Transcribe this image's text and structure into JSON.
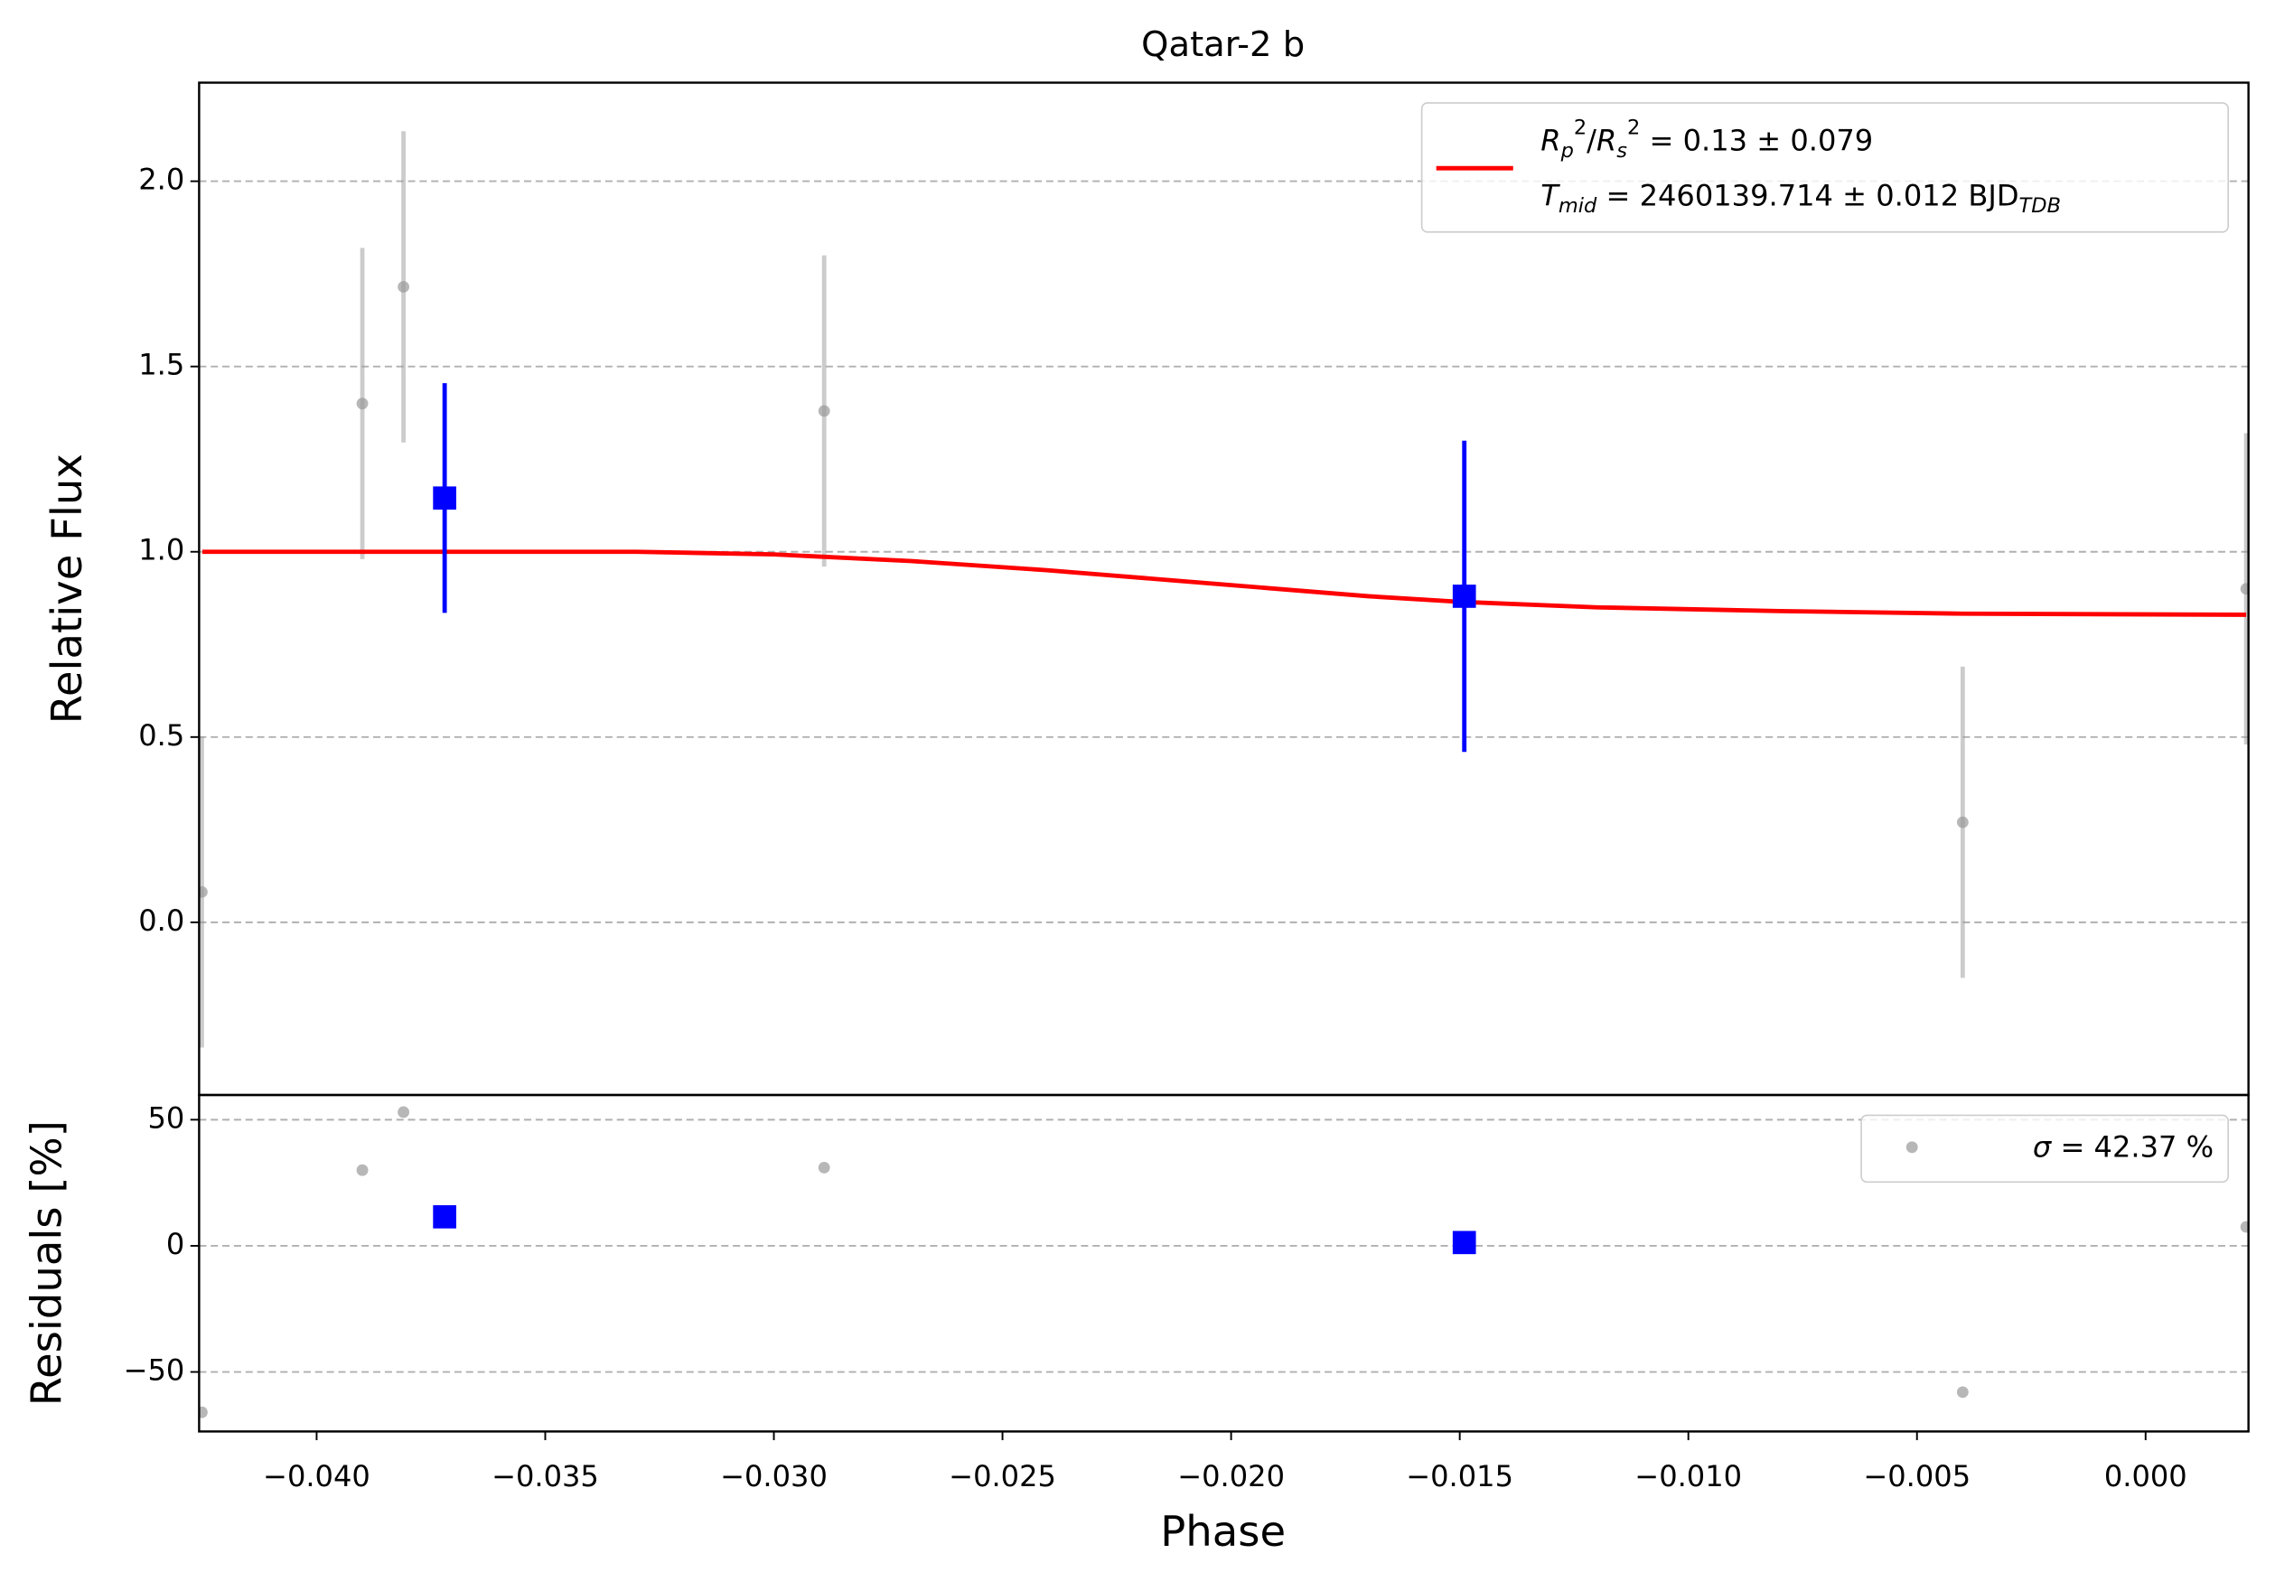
{
  "chart_data": [
    {
      "type": "scatter",
      "title": "Qatar-2 b",
      "y_label": "Relative Flux",
      "xlim": [
        -0.04257,
        0.00225
      ],
      "ylim": [
        -0.466,
        2.266
      ],
      "yticks": [
        {
          "value": 0,
          "label": "0.0"
        },
        0.5,
        {
          "value": 1,
          "label": "1.0"
        },
        1.5,
        {
          "value": 2,
          "label": "2.0"
        }
      ],
      "grid": true,
      "points": {
        "color": "#999999",
        "x": [
          -0.04251,
          -0.039,
          -0.0381,
          -0.0289,
          -0.004,
          0.0022
        ],
        "values": [
          0.082,
          1.4,
          1.715,
          1.38,
          0.27,
          0.9
        ],
        "errors": [
          0.42,
          0.42,
          0.42,
          0.42,
          0.42,
          0.42
        ]
      },
      "bins": {
        "color": "#0000ff",
        "x": [
          -0.0372,
          -0.0149
        ],
        "values": [
          1.145,
          0.88
        ],
        "errors": [
          0.31,
          0.42
        ]
      },
      "model": {
        "color": "#ff0000",
        "x": [
          -0.0425,
          -0.036,
          -0.033,
          -0.03,
          -0.027,
          -0.024,
          -0.02,
          -0.017,
          -0.015,
          -0.012,
          -0.008,
          -0.004,
          0.0022
        ],
        "values": [
          1.0,
          1.0,
          1.0,
          0.993,
          0.975,
          0.95,
          0.91,
          0.88,
          0.865,
          0.85,
          0.84,
          0.833,
          0.83
        ],
        "legend": [
          [
            {
              "t": "R",
              "s": "it"
            },
            {
              "t": "p",
              "s": "sub"
            },
            {
              "t": "2",
              "s": "sup"
            },
            {
              "t": "/",
              "s": ""
            },
            {
              "t": "R",
              "s": "it"
            },
            {
              "t": "s",
              "s": "sub"
            },
            {
              "t": "2",
              "s": "sup"
            },
            {
              "t": " = 0.13 ± 0.079",
              "s": ""
            }
          ],
          [
            {
              "t": "T",
              "s": "it"
            },
            {
              "t": "mid",
              "s": "sub"
            },
            {
              "t": " = 2460139.714 ± 0.012 BJD",
              "s": ""
            },
            {
              "t": "TDB",
              "s": "sub"
            }
          ]
        ]
      },
      "legend_loc": "upper right"
    },
    {
      "type": "scatter",
      "x_label": "Phase",
      "y_label": "Residuals [%]",
      "xlim": [
        -0.04257,
        0.00225
      ],
      "ylim": [
        -73.6,
        59.8
      ],
      "xticks": [
        {
          "value": -0.04,
          "label": "−0.040"
        },
        {
          "value": -0.035,
          "label": "−0.035"
        },
        {
          "value": -0.03,
          "label": "−0.030"
        },
        {
          "value": -0.025,
          "label": "−0.025"
        },
        {
          "value": -0.02,
          "label": "−0.020"
        },
        {
          "value": -0.015,
          "label": "−0.015"
        },
        {
          "value": -0.01,
          "label": "−0.010"
        },
        {
          "value": -0.005,
          "label": "−0.005"
        },
        {
          "value": 0,
          "label": "0.000"
        }
      ],
      "yticks": [
        {
          "value": -50,
          "label": "−50"
        },
        0,
        50
      ],
      "grid": true,
      "points": {
        "color": "#999999",
        "x": [
          -0.04251,
          -0.039,
          -0.0381,
          -0.0289,
          -0.004,
          0.0022
        ],
        "values": [
          -66,
          30,
          53,
          31,
          -58,
          7.5
        ],
        "legend": [
          {
            "t": "σ",
            "s": "it"
          },
          {
            "t": " = 42.37 %",
            "s": ""
          }
        ]
      },
      "bins": {
        "color": "#0000ff",
        "x": [
          -0.0372,
          -0.0149
        ],
        "values": [
          11.5,
          1.3
        ]
      },
      "legend_loc": "upper right"
    }
  ]
}
